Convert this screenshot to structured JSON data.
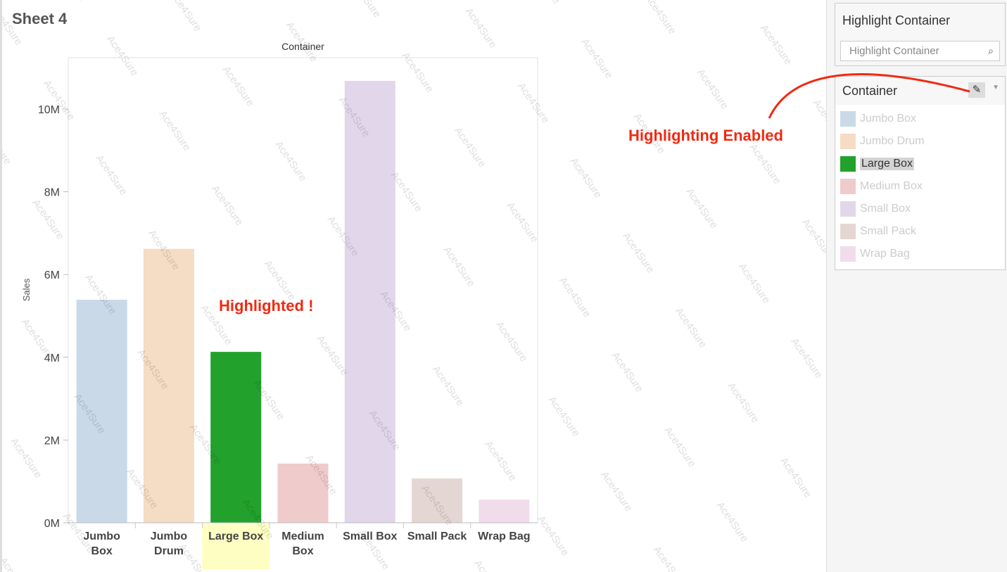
{
  "sheet_title": "Sheet 4",
  "highlight_card": {
    "title": "Highlight Container",
    "placeholder": "Highlight Container",
    "search_icon": "search-icon"
  },
  "legend": {
    "title": "Container",
    "edit_icon": "pencil-icon",
    "menu_icon": "dropdown-arrow-icon",
    "items": [
      {
        "label": "Jumbo Box",
        "color": "#c9d9e7",
        "highlighted": false
      },
      {
        "label": "Jumbo Drum",
        "color": "#f5dcc4",
        "highlighted": false
      },
      {
        "label": "Large Box",
        "color": "#22a12c",
        "highlighted": true
      },
      {
        "label": "Medium Box",
        "color": "#efcbcb",
        "highlighted": false
      },
      {
        "label": "Small Box",
        "color": "#e2d7ea",
        "highlighted": false
      },
      {
        "label": "Small Pack",
        "color": "#e4d7d3",
        "highlighted": false
      },
      {
        "label": "Wrap Bag",
        "color": "#f1dcec",
        "highlighted": false
      }
    ]
  },
  "annotations": {
    "highlighted": "Highlighted !",
    "enabled": "Highlighting Enabled",
    "color": "#f02a12"
  },
  "watermark": "Ace4Sure",
  "chart_data": {
    "type": "bar",
    "title": "Container",
    "xlabel": "",
    "ylabel": "Sales",
    "ylim": [
      0,
      11240000
    ],
    "yticks": [
      0,
      2000000,
      4000000,
      6000000,
      8000000,
      10000000
    ],
    "ytick_labels": [
      "0M",
      "2M",
      "4M",
      "6M",
      "8M",
      "10M"
    ],
    "categories": [
      "Jumbo Box",
      "Jumbo Drum",
      "Large Box",
      "Medium Box",
      "Small Box",
      "Small Pack",
      "Wrap Bag"
    ],
    "category_labels": [
      [
        "Jumbo",
        "Box"
      ],
      [
        "Jumbo",
        "Drum"
      ],
      [
        "Large Box"
      ],
      [
        "Medium",
        "Box"
      ],
      [
        "Small Box"
      ],
      [
        "Small Pack"
      ],
      [
        "Wrap Bag"
      ]
    ],
    "values": [
      5390000,
      6620000,
      4130000,
      1430000,
      10680000,
      1070000,
      560000
    ],
    "highlighted_category": "Large Box",
    "grid": false
  }
}
